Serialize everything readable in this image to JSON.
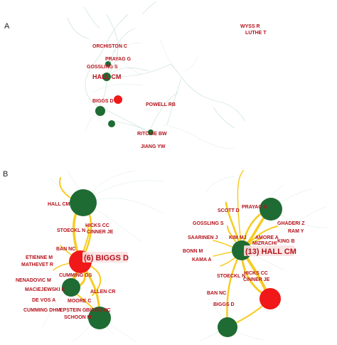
{
  "panels": [
    {
      "label": "A",
      "authors": [
        "WYSS R",
        "LUTHE T",
        "ORCHISTON C",
        "PRAYAG G",
        "GOSSLING S",
        "HALL CM",
        "BIGGS D",
        "POWELL RB",
        "RITCHIE BW",
        "JIANG YW"
      ]
    },
    {
      "label": "B",
      "left_highlight": "(6) BIGGS D",
      "left_authors": [
        "HALL CM",
        "HICKS CC",
        "CINNER JE",
        "STOECKL N",
        "BAN NC",
        "ETIENNE M",
        "MATHEVET R",
        "NENADOVIC M",
        "CUMMING GS",
        "MACIEJEWSKI K",
        "ALLEN CR",
        "DE VOS A",
        "MOORE C",
        "CUMMING DHM",
        "EPSTEIN G",
        "BIGGS HC",
        "SCHOON M"
      ],
      "right_highlight": "(13) HALL CM",
      "right_authors": [
        "SCOTT D",
        "PRAYAG G",
        "GOSSLING S",
        "GHADERI Z",
        "RAM Y",
        "SAARINEN J",
        "KIM MJ",
        "AMORE A",
        "KING B",
        "MIZRACHI",
        "BONN M",
        "KAMA A",
        "STOECKL N",
        "HICKS CC",
        "CINNER JE",
        "BAN NC",
        "BIGGS D"
      ]
    }
  ],
  "colors": {
    "node_green": "#1e6b33",
    "node_red": "#f01818",
    "label_red": "#b5121b",
    "edge_gold": "#f5c60a",
    "edge_green": "#8fc5a6"
  }
}
